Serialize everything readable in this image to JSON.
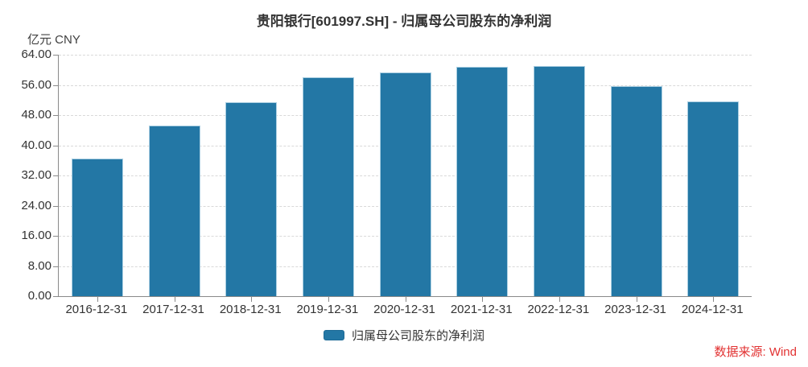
{
  "chart_data": {
    "type": "bar",
    "title": "贵阳银行[601997.SH] - 归属母公司股东的净利润",
    "unit_label": "亿元  CNY",
    "xlabel": "",
    "ylabel": "亿元 CNY",
    "categories": [
      "2016-12-31",
      "2017-12-31",
      "2018-12-31",
      "2019-12-31",
      "2020-12-31",
      "2021-12-31",
      "2022-12-31",
      "2023-12-31",
      "2024-12-31"
    ],
    "series": [
      {
        "name": "归属母公司股东的净利润",
        "color": "#2377A5",
        "values": [
          36.53,
          45.28,
          51.37,
          58.0,
          59.24,
          60.9,
          61.07,
          55.62,
          51.64
        ]
      }
    ],
    "ylim": [
      0,
      64
    ],
    "y_tick_step": 8,
    "y_tick_labels": [
      "0.00",
      "8.00",
      "16.00",
      "24.00",
      "32.00",
      "40.00",
      "48.00",
      "56.00",
      "64.00"
    ],
    "grid": "horizontal-dashed",
    "legend_position": "bottom-center"
  },
  "legend": {
    "items": [
      {
        "label": "归属母公司股东的净利润",
        "color": "#2377A5"
      }
    ]
  },
  "source": {
    "text": "数据来源: Wind",
    "color": "#E23232"
  }
}
